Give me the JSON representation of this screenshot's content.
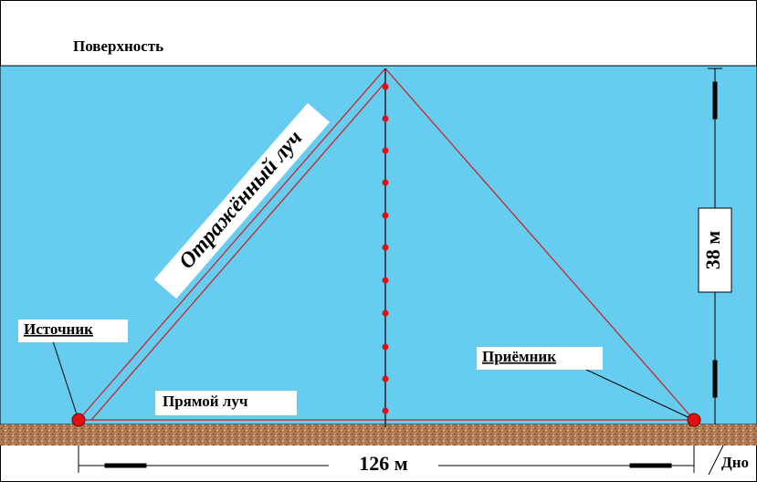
{
  "surface_label": "Поверхность",
  "reflected_ray_label": "Отражённый луч",
  "source_label": "Источник",
  "receiver_label": "Приёмник",
  "direct_ray_label": "Прямой луч",
  "depth_label": "38 м",
  "distance_label": "126 м",
  "bottom_label": "Дно"
}
